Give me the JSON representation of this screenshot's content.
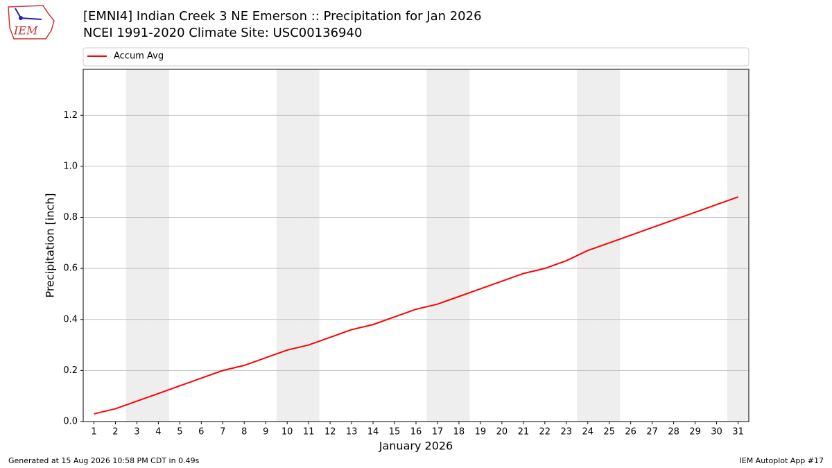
{
  "logo_text": "IEM",
  "chart_data": {
    "type": "line",
    "title": "[EMNI4] Indian Creek 3 NE Emerson :: Precipitation for Jan 2026",
    "subtitle": "NCEI 1991-2020 Climate Site: USC00136940",
    "xlabel": "January 2026",
    "ylabel": "Precipitation [inch]",
    "x": [
      1,
      2,
      3,
      4,
      5,
      6,
      7,
      8,
      9,
      10,
      11,
      12,
      13,
      14,
      15,
      16,
      17,
      18,
      19,
      20,
      21,
      22,
      23,
      24,
      25,
      26,
      27,
      28,
      29,
      30,
      31
    ],
    "series": [
      {
        "name": "Accum Avg",
        "color": "#ff0000",
        "values": [
          0.03,
          0.05,
          0.08,
          0.11,
          0.14,
          0.17,
          0.2,
          0.22,
          0.25,
          0.28,
          0.3,
          0.33,
          0.36,
          0.38,
          0.41,
          0.44,
          0.46,
          0.49,
          0.52,
          0.55,
          0.58,
          0.6,
          0.63,
          0.67,
          0.7,
          0.73,
          0.76,
          0.79,
          0.82,
          0.85,
          0.88
        ]
      }
    ],
    "shaded_days": [
      3,
      4,
      10,
      11,
      17,
      18,
      24,
      25,
      31
    ],
    "shade_color": "#eeeeee",
    "xlim": [
      0.5,
      31.5
    ],
    "xticks": [
      1,
      2,
      3,
      4,
      5,
      6,
      7,
      8,
      9,
      10,
      11,
      12,
      13,
      14,
      15,
      16,
      17,
      18,
      19,
      20,
      21,
      22,
      23,
      24,
      25,
      26,
      27,
      28,
      29,
      30,
      31
    ],
    "ylim": [
      0,
      1.38
    ],
    "yticks": [
      {
        "value": 0,
        "label": "0.0"
      },
      {
        "value": 0.2,
        "label": "0.2"
      },
      {
        "value": 0.4,
        "label": "0.4"
      },
      {
        "value": 0.6,
        "label": "0.6"
      },
      {
        "value": 0.8,
        "label": "0.8"
      },
      {
        "value": 1,
        "label": "1.0"
      },
      {
        "value": 1.2,
        "label": "1.2"
      }
    ],
    "grid": true,
    "legend": "top"
  },
  "footer_left": "Generated at 15 Aug 2026 10:58 PM CDT in 0.49s",
  "footer_right": "IEM Autoplot App #17"
}
